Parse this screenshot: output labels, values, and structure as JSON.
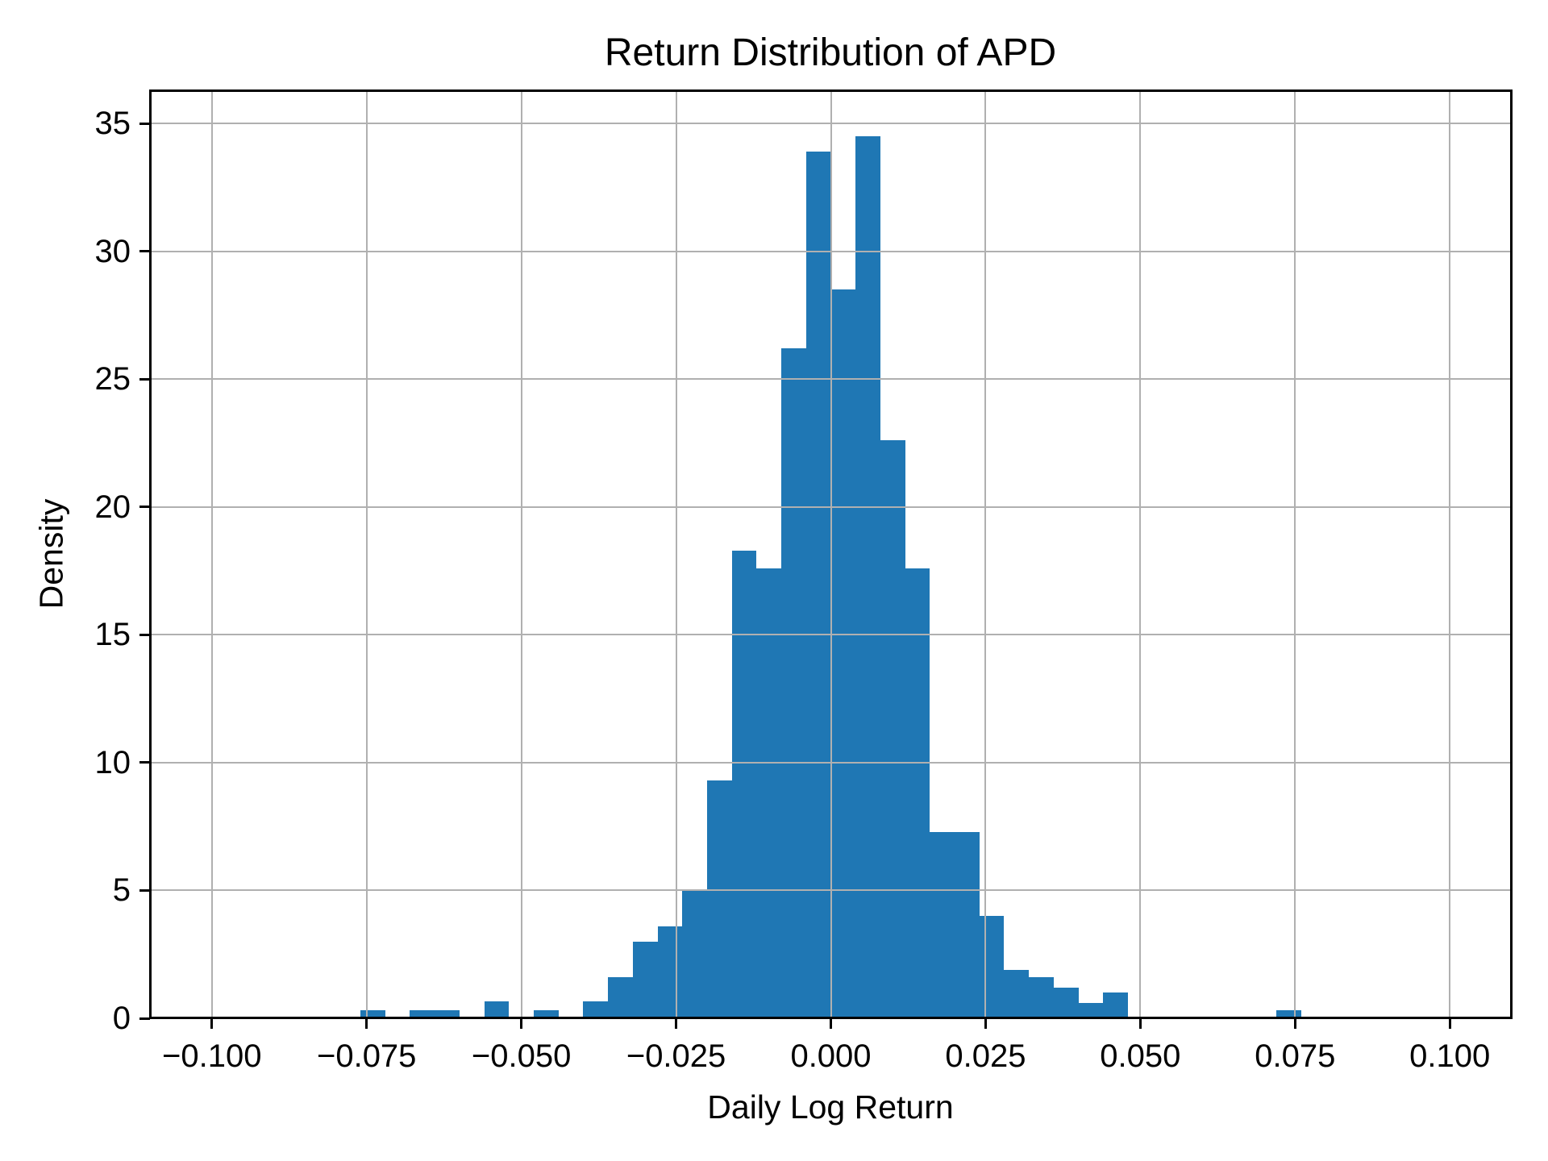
{
  "figure": {
    "title": "Return Distribution of APD",
    "xlabel": "Daily Log Return",
    "ylabel": "Density"
  },
  "chart_data": {
    "type": "bar",
    "subtype": "histogram",
    "title": "Return Distribution of APD",
    "xlabel": "Daily Log Return",
    "ylabel": "Density",
    "bin_width": 0.004,
    "bin_edges": [
      -0.076,
      -0.072,
      -0.068,
      -0.064,
      -0.06,
      -0.056,
      -0.052,
      -0.048,
      -0.044,
      -0.04,
      -0.036,
      -0.032,
      -0.028,
      -0.024,
      -0.02,
      -0.016,
      -0.012,
      -0.008,
      -0.004,
      0.0,
      0.004,
      0.008,
      0.012,
      0.016,
      0.02,
      0.024,
      0.028,
      0.032,
      0.036,
      0.04,
      0.044,
      0.048,
      0.052,
      0.056,
      0.06,
      0.064,
      0.068,
      0.072,
      0.076
    ],
    "values": [
      0.3,
      0,
      0.3,
      0.3,
      0,
      0.65,
      0,
      0.3,
      0,
      0.65,
      1.6,
      3.0,
      3.6,
      5.0,
      9.3,
      18.3,
      17.6,
      26.2,
      33.9,
      28.5,
      34.5,
      22.6,
      17.6,
      7.3,
      7.3,
      4.0,
      1.9,
      1.6,
      1.2,
      0.6,
      1.0,
      0,
      0,
      0,
      0,
      0,
      0,
      0.3
    ],
    "xlim": [
      -0.11,
      0.11
    ],
    "ylim": [
      0,
      36.3
    ],
    "xticks": {
      "values": [
        -0.1,
        -0.075,
        -0.05,
        -0.025,
        0.0,
        0.025,
        0.05,
        0.075,
        0.1
      ],
      "labels": [
        "−0.100",
        "−0.075",
        "−0.050",
        "−0.025",
        "0.000",
        "0.025",
        "0.050",
        "0.075",
        "0.100"
      ]
    },
    "yticks": {
      "values": [
        0,
        5,
        10,
        15,
        20,
        25,
        30,
        35
      ],
      "labels": [
        "0",
        "5",
        "10",
        "15",
        "20",
        "25",
        "30",
        "35"
      ]
    },
    "grid": true,
    "grid_above_bars": true,
    "legend": null,
    "colors": {
      "bar": "#1f77b4",
      "grid": "#b0b0b0",
      "spine": "#000000",
      "text": "#000000",
      "background": "#ffffff"
    }
  }
}
